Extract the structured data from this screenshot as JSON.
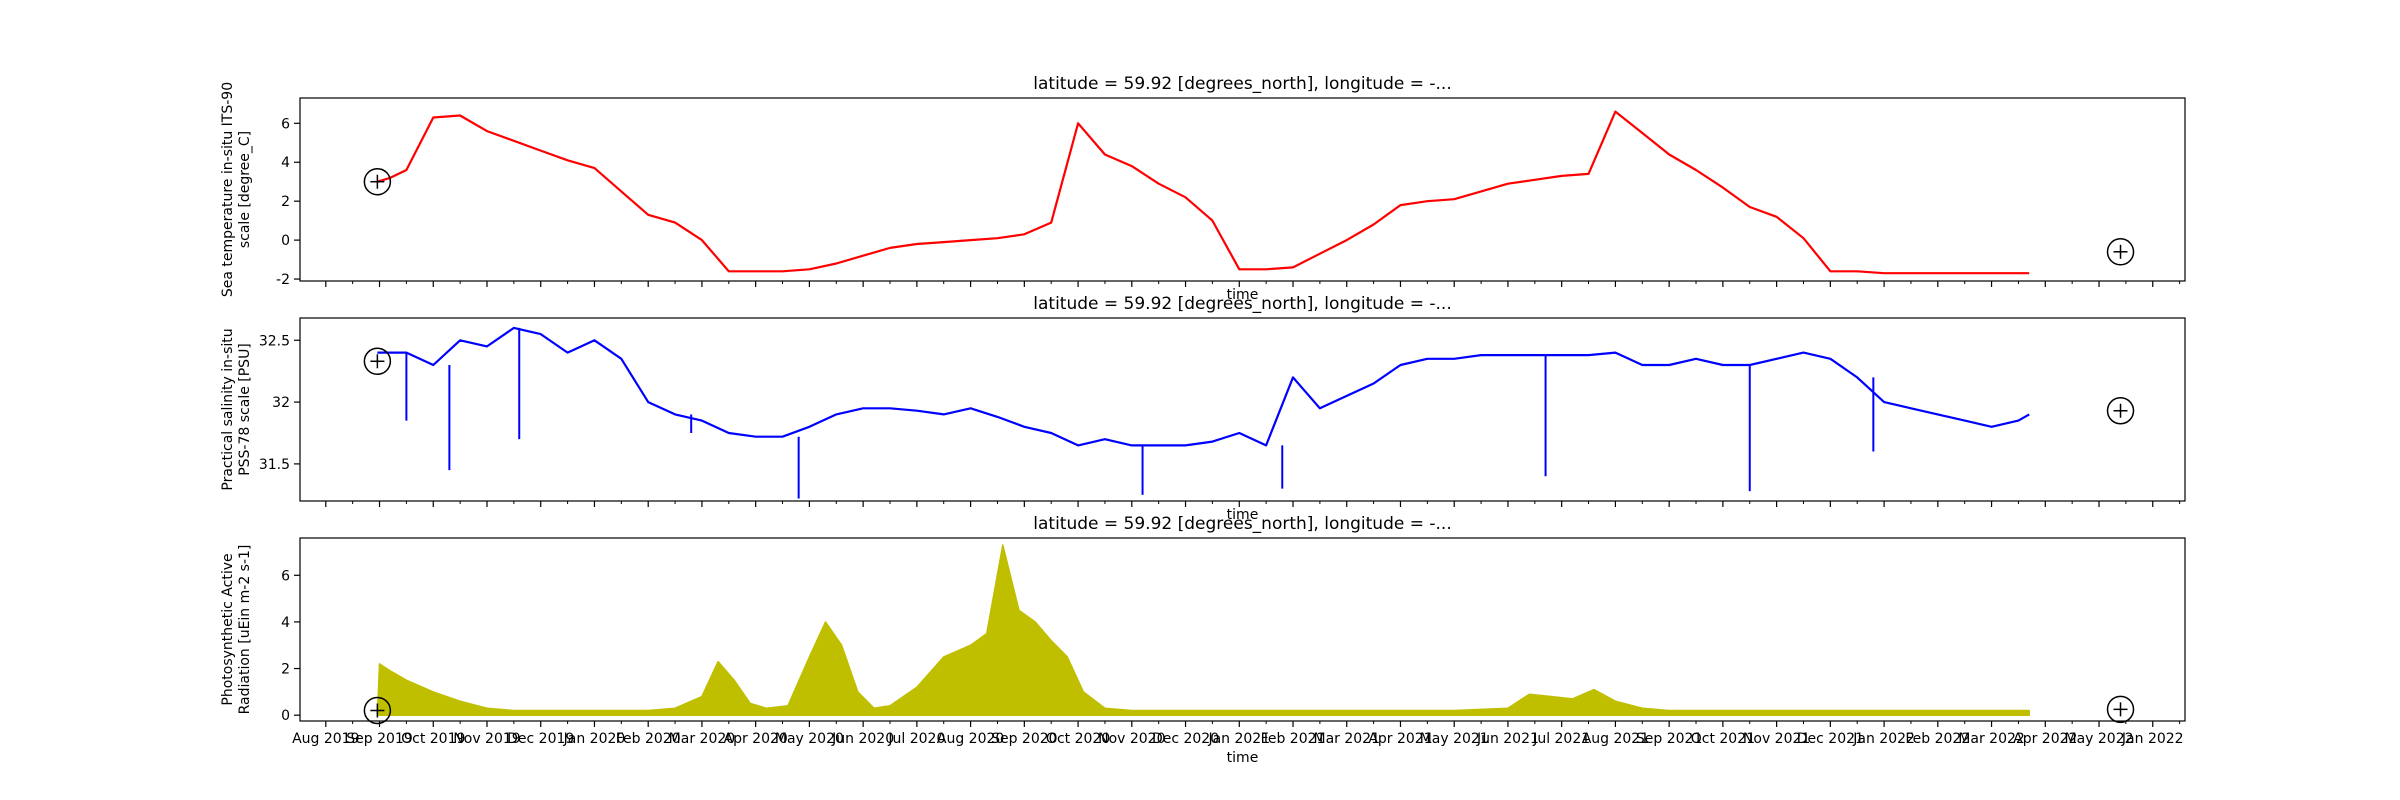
{
  "figure": {
    "x_axis": {
      "label": "time",
      "tick_labels": [
        "Aug 2019",
        "Sep 2019",
        "Oct 2019",
        "Nov 2019",
        "Dec 2019",
        "Jan 2020",
        "Feb 2020",
        "Mar 2020",
        "Apr 2020",
        "May 2020",
        "Jun 2020",
        "Jul 2020",
        "Aug 2020",
        "Sep 2020",
        "Oct 2020",
        "Nov 2020",
        "Dec 2020",
        "Jan 2021",
        "Feb 2021",
        "Mar 2021",
        "Apr 2021",
        "May 2021",
        "Jun 2021",
        "Jul 2021",
        "Aug 2021",
        "Sep 2021",
        "Oct 2021",
        "Nov 2021",
        "Dec 2021",
        "Jan 2022",
        "Feb 2022",
        "Mar 2022",
        "Apr 2022",
        "May 2022",
        "Jan 2022"
      ]
    }
  },
  "chart_data": [
    {
      "type": "line",
      "title": "latitude = 59.92 [degrees_north], longitude = -...",
      "xlabel": "time",
      "ylabel": [
        "Sea temperature in-situ ITS-90",
        "scale [degree_C]"
      ],
      "ylim": [
        -2.1,
        7.3
      ],
      "y_ticks": [
        -2,
        0,
        2,
        4,
        6
      ],
      "color": "#ff0000",
      "series": [
        {
          "x": [
            0.96,
            1.2,
            1.5,
            2.0,
            2.5,
            3.0,
            4.0,
            4.5,
            5.0,
            5.5,
            6.0,
            6.5,
            7.0,
            7.5,
            8.0,
            8.5,
            9.0,
            9.5,
            10.0,
            10.5,
            11.0,
            11.5,
            12.0,
            12.5,
            13.0,
            13.5,
            14.0,
            14.5,
            15.0,
            15.5,
            16.0,
            16.5,
            17.0,
            17.5,
            18.0,
            18.5,
            19.0,
            19.5,
            20.0,
            20.5,
            21.0,
            21.5,
            22.0,
            22.5,
            23.0,
            23.5,
            24.0,
            24.5,
            25.0,
            25.5,
            26.0,
            26.5,
            27.0,
            27.5,
            28.0,
            28.5,
            29.0,
            29.5,
            30.0,
            30.5,
            31.0,
            31.7
          ],
          "y": [
            3.0,
            3.2,
            3.6,
            6.3,
            6.4,
            5.6,
            4.6,
            4.1,
            3.7,
            2.5,
            1.3,
            0.9,
            0.0,
            -1.6,
            -1.6,
            -1.6,
            -1.5,
            -1.2,
            -0.8,
            -0.4,
            -0.2,
            -0.1,
            0.0,
            0.1,
            0.3,
            0.9,
            6.0,
            4.4,
            3.8,
            2.9,
            2.2,
            1.0,
            -1.5,
            -1.5,
            -1.4,
            -0.7,
            0.0,
            0.8,
            1.8,
            2.0,
            2.1,
            2.5,
            2.9,
            3.1,
            3.3,
            3.4,
            6.6,
            5.5,
            4.4,
            3.6,
            2.7,
            1.7,
            1.2,
            0.1,
            -1.6,
            -1.6,
            -1.7,
            -1.7,
            -1.7,
            -1.7,
            -1.7,
            -1.7
          ]
        }
      ],
      "markers": [
        {
          "x": 0.96,
          "y": 3.0
        },
        {
          "x": 33.4,
          "y": -0.6
        }
      ]
    },
    {
      "type": "line",
      "title": "latitude = 59.92 [degrees_north], longitude = -...",
      "xlabel": "time",
      "ylabel": [
        "Practical salinity in-situ",
        "PSS-78 scale [PSU]"
      ],
      "ylim": [
        31.2,
        32.68
      ],
      "y_ticks": [
        31.5,
        32.0,
        32.5
      ],
      "color": "#0000ff",
      "series": [
        {
          "x": [
            0.96,
            1.5,
            2.0,
            2.5,
            3.0,
            3.5,
            4.0,
            4.5,
            5.0,
            5.5,
            6.0,
            6.5,
            7.0,
            7.5,
            8.0,
            8.5,
            9.0,
            9.5,
            10.0,
            10.5,
            11.0,
            11.5,
            12.0,
            12.5,
            13.0,
            13.5,
            14.0,
            14.5,
            15.0,
            15.5,
            16.0,
            16.5,
            17.0,
            17.5,
            18.0,
            18.5,
            19.0,
            19.5,
            20.0,
            20.5,
            21.0,
            21.5,
            22.0,
            22.5,
            23.0,
            23.5,
            24.0,
            24.5,
            25.0,
            25.5,
            26.0,
            26.5,
            27.0,
            27.5,
            28.0,
            28.5,
            29.0,
            29.5,
            30.0,
            30.5,
            31.0,
            31.5,
            31.7
          ],
          "y": [
            32.4,
            32.4,
            32.3,
            32.5,
            32.45,
            32.6,
            32.55,
            32.4,
            32.5,
            32.35,
            32.0,
            31.9,
            31.85,
            31.75,
            31.72,
            31.72,
            31.8,
            31.9,
            31.95,
            31.95,
            31.93,
            31.9,
            31.95,
            31.88,
            31.8,
            31.75,
            31.65,
            31.7,
            31.65,
            31.65,
            31.65,
            31.68,
            31.75,
            31.65,
            32.2,
            31.95,
            32.05,
            32.15,
            32.3,
            32.35,
            32.35,
            32.38,
            32.38,
            32.38,
            32.38,
            32.38,
            32.4,
            32.3,
            32.3,
            32.35,
            32.3,
            32.3,
            32.35,
            32.4,
            32.35,
            32.2,
            32.0,
            31.95,
            31.9,
            31.85,
            31.8,
            31.85,
            31.9
          ]
        }
      ],
      "spikes": [
        {
          "x": 1.5,
          "y": 31.85
        },
        {
          "x": 2.3,
          "y": 31.45
        },
        {
          "x": 3.6,
          "y": 31.7
        },
        {
          "x": 6.8,
          "y": 31.75
        },
        {
          "x": 8.8,
          "y": 31.22
        },
        {
          "x": 15.2,
          "y": 31.25
        },
        {
          "x": 17.8,
          "y": 31.3
        },
        {
          "x": 22.7,
          "y": 31.4
        },
        {
          "x": 26.5,
          "y": 31.28
        },
        {
          "x": 28.8,
          "y": 31.6
        }
      ],
      "markers": [
        {
          "x": 0.96,
          "y": 32.33
        },
        {
          "x": 33.4,
          "y": 31.93
        }
      ]
    },
    {
      "type": "area",
      "title": "latitude = 59.92 [degrees_north], longitude = -...",
      "xlabel": "time",
      "ylabel": [
        "Photosynthetic Active",
        "Radiation [uEin m-2 s-1]"
      ],
      "ylim": [
        -0.25,
        7.6
      ],
      "y_ticks": [
        0,
        2,
        4,
        6
      ],
      "color": "#bfbf00",
      "series": [
        {
          "x": [
            0.96,
            1.0,
            1.2,
            1.5,
            2.0,
            2.5,
            3.0,
            3.5,
            4.0,
            5.0,
            6.0,
            6.5,
            7.0,
            7.3,
            7.6,
            7.9,
            8.2,
            8.6,
            9.0,
            9.3,
            9.6,
            9.9,
            10.2,
            10.5,
            11.0,
            11.5,
            12.0,
            12.3,
            12.6,
            12.9,
            13.2,
            13.5,
            13.8,
            14.1,
            14.5,
            15.0,
            16.0,
            17.0,
            18.0,
            19.0,
            20.0,
            21.0,
            22.0,
            22.4,
            22.8,
            23.2,
            23.6,
            24.0,
            24.5,
            25.0,
            26.0,
            27.0,
            28.0,
            29.0,
            30.0,
            31.0,
            31.7
          ],
          "y": [
            0.0,
            2.2,
            1.9,
            1.5,
            1.0,
            0.6,
            0.3,
            0.2,
            0.2,
            0.2,
            0.2,
            0.3,
            0.8,
            2.3,
            1.5,
            0.5,
            0.3,
            0.4,
            2.5,
            4.0,
            3.0,
            1.0,
            0.3,
            0.4,
            1.2,
            2.5,
            3.0,
            3.5,
            7.3,
            4.5,
            4.0,
            3.2,
            2.5,
            1.0,
            0.3,
            0.2,
            0.2,
            0.2,
            0.2,
            0.2,
            0.2,
            0.2,
            0.3,
            0.9,
            0.8,
            0.7,
            1.1,
            0.6,
            0.3,
            0.2,
            0.2,
            0.2,
            0.2,
            0.2,
            0.2,
            0.2,
            0.2
          ]
        }
      ],
      "markers": [
        {
          "x": 0.96,
          "y": 0.2
        },
        {
          "x": 33.4,
          "y": 0.25
        }
      ]
    }
  ]
}
